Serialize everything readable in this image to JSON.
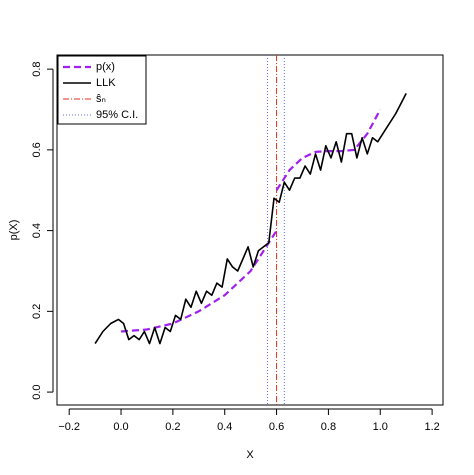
{
  "chart_data": {
    "type": "line",
    "xlabel": "X",
    "ylabel": "p(X)",
    "xlim": [
      -0.247,
      1.242
    ],
    "ylim": [
      -0.032,
      0.835
    ],
    "xticks": [
      {
        "value": -0.2,
        "label": "−0.2"
      },
      {
        "value": 0,
        "label": "0.0"
      },
      0.2,
      0.4,
      0.6,
      0.8,
      {
        "value": 1,
        "label": "1.0"
      },
      1.2
    ],
    "yticks": [
      {
        "value": 0,
        "label": "0.0"
      },
      0.2,
      0.4,
      0.6,
      0.8
    ],
    "legend": "top-left",
    "series": [
      {
        "name": "p(x)",
        "color": "#a020f0",
        "style": "dashed",
        "x": [
          0,
          0.1,
          0.2,
          0.3,
          0.4,
          0.5,
          0.6,
          0.6,
          0.6,
          0.65,
          0.7,
          0.75,
          0.8,
          0.85,
          0.9,
          0.95,
          1.0
        ],
        "values": [
          0.15,
          0.155,
          0.17,
          0.2,
          0.24,
          0.3,
          0.4,
          null,
          0.5,
          0.55,
          0.58,
          0.595,
          0.597,
          0.597,
          0.6,
          0.64,
          0.7
        ]
      },
      {
        "name": "LLK",
        "color": "#000000",
        "style": "solid",
        "x": [
          -0.1,
          -0.07,
          -0.04,
          -0.01,
          0.01,
          0.03,
          0.05,
          0.07,
          0.09,
          0.11,
          0.13,
          0.15,
          0.17,
          0.19,
          0.21,
          0.23,
          0.25,
          0.27,
          0.29,
          0.31,
          0.33,
          0.35,
          0.37,
          0.39,
          0.41,
          0.43,
          0.45,
          0.47,
          0.49,
          0.51,
          0.53,
          0.55,
          0.57,
          0.59,
          0.61,
          0.63,
          0.65,
          0.67,
          0.69,
          0.71,
          0.73,
          0.75,
          0.77,
          0.79,
          0.81,
          0.83,
          0.85,
          0.87,
          0.89,
          0.91,
          0.93,
          0.95,
          0.97,
          0.99,
          1.02,
          1.06,
          1.1
        ],
        "values": [
          0.12,
          0.15,
          0.17,
          0.18,
          0.17,
          0.13,
          0.14,
          0.13,
          0.15,
          0.12,
          0.16,
          0.12,
          0.16,
          0.15,
          0.19,
          0.18,
          0.23,
          0.21,
          0.25,
          0.22,
          0.25,
          0.24,
          0.27,
          0.26,
          0.33,
          0.31,
          0.3,
          0.33,
          0.36,
          0.31,
          0.35,
          0.36,
          0.37,
          0.48,
          0.47,
          0.52,
          0.5,
          0.53,
          0.53,
          0.56,
          0.54,
          0.59,
          0.55,
          0.61,
          0.58,
          0.62,
          0.57,
          0.64,
          0.64,
          0.58,
          0.63,
          0.59,
          0.63,
          0.62,
          0.65,
          0.69,
          0.74
        ]
      }
    ],
    "vlines": [
      {
        "name": "ŝₙ",
        "color": "#e0301e",
        "style": "dashdot",
        "x": [
          0.6
        ]
      },
      {
        "name": "95% C.I.",
        "color": "#6a6af0",
        "style": "dotted",
        "x": [
          0.565,
          0.63
        ]
      }
    ]
  }
}
